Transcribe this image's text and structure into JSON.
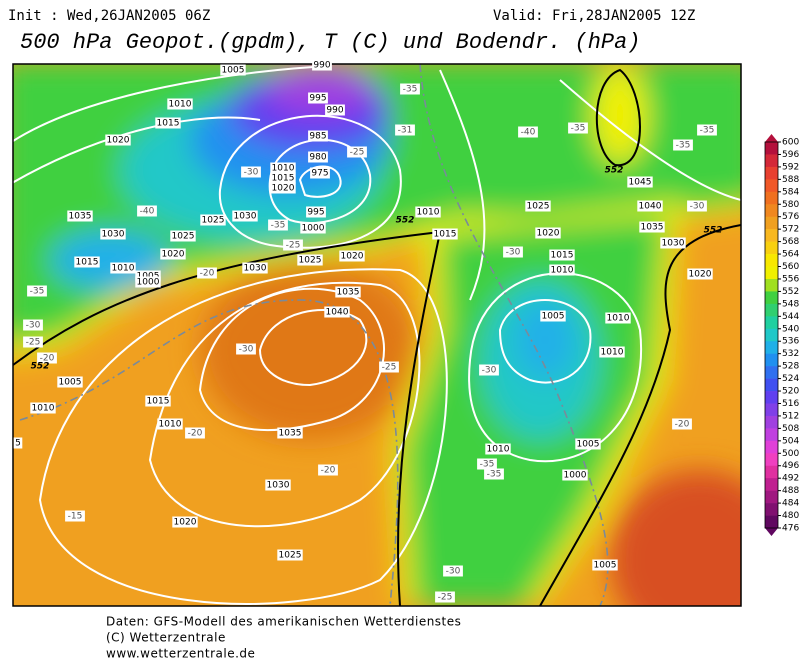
{
  "header": {
    "init": "Init : Wed,26JAN2005 06Z",
    "valid": "Valid: Fri,28JAN2005 12Z",
    "title": "500 hPa Geopot.(gpdm), T (C) und Bodendr. (hPa)"
  },
  "map": {
    "pressure_labels": [
      "1005",
      "990",
      "995",
      "990",
      "1010",
      "1015",
      "1020",
      "985",
      "980",
      "975",
      "1010",
      "1015",
      "1020",
      "1030",
      "1025",
      "995",
      "1000",
      "1035",
      "1030",
      "1025",
      "1020",
      "1015",
      "1010",
      "1005",
      "1000",
      "1030",
      "1025",
      "1020",
      "1010",
      "1015",
      "1025",
      "1020",
      "1015",
      "1010",
      "1005",
      "1010",
      "1010",
      "1035",
      "1040",
      "1035",
      "1030",
      "1025",
      "1020",
      "1015",
      "1010",
      "1005",
      "1010",
      "1010",
      "1005",
      "1000",
      "1005",
      "1045",
      "1040",
      "1035",
      "1030",
      "1020",
      "5"
    ],
    "temperature_labels": [
      "-35",
      "-31",
      "-25",
      "-40",
      "-35",
      "-35",
      "-35",
      "-30",
      "-30",
      "-40",
      "-35",
      "-25",
      "-20",
      "-35",
      "-30",
      "-25",
      "-20",
      "-30",
      "-25",
      "-30",
      "-20",
      "-20",
      "-15",
      "-20",
      "-35",
      "-35",
      "-30",
      "-25",
      "-30"
    ],
    "geopotential_labels": [
      "552",
      "552",
      "552",
      "552"
    ]
  },
  "colorbar": {
    "ticks": [
      600,
      596,
      592,
      588,
      584,
      580,
      576,
      572,
      568,
      564,
      560,
      556,
      552,
      548,
      544,
      540,
      536,
      532,
      528,
      524,
      520,
      516,
      512,
      508,
      504,
      500,
      496,
      492,
      488,
      484,
      480,
      476
    ],
    "colors": [
      "#b4103c",
      "#d42838",
      "#e84030",
      "#f05828",
      "#f07020",
      "#f08820",
      "#f0a020",
      "#f8b820",
      "#f8d010",
      "#f8e800",
      "#f0f000",
      "#a0e020",
      "#40d040",
      "#30d070",
      "#20d0a0",
      "#20c8c8",
      "#20b0e8",
      "#2090f0",
      "#3070f0",
      "#4050f0",
      "#6040f0",
      "#8040e8",
      "#a040e0",
      "#c040e0",
      "#e040d8",
      "#f040c0",
      "#e030a0",
      "#c02090",
      "#a01880",
      "#801070",
      "#600860"
    ]
  },
  "footer": {
    "lines": [
      "Daten: GFS-Modell des amerikanischen Wetterdienstes",
      "(C) Wetterzentrale",
      "www.wetterzentrale.de"
    ]
  }
}
